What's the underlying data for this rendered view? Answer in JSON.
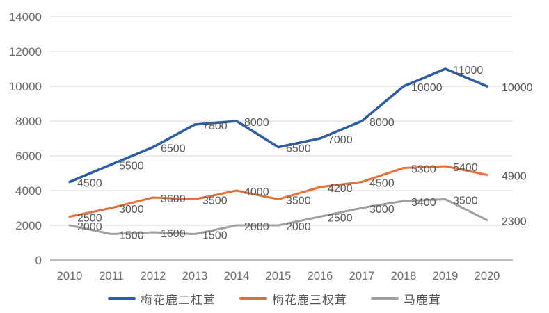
{
  "chart_data": {
    "type": "line",
    "title": "",
    "xlabel": "",
    "ylabel": "",
    "x": [
      "2010",
      "2011",
      "2012",
      "2013",
      "2014",
      "2015",
      "2016",
      "2017",
      "2018",
      "2019",
      "2020"
    ],
    "series": [
      {
        "name": "梅花鹿二杠茸",
        "color": "#2E5DA4",
        "values": [
          4500,
          5500,
          6500,
          7800,
          8000,
          6500,
          7000,
          8000,
          10000,
          11000,
          10000
        ]
      },
      {
        "name": "梅花鹿三权茸",
        "color": "#E5713A",
        "values": [
          2500,
          3000,
          3600,
          3500,
          4000,
          3500,
          4200,
          4500,
          5300,
          5400,
          4900
        ]
      },
      {
        "name": "马鹿茸",
        "color": "#9EA0A2",
        "values": [
          2000,
          1500,
          1600,
          1500,
          2000,
          2000,
          2500,
          3000,
          3400,
          3500,
          2300
        ]
      }
    ],
    "ylim": [
      0,
      14000
    ],
    "y_ticks": [
      0,
      2000,
      4000,
      6000,
      8000,
      10000,
      12000,
      14000
    ],
    "grid": true,
    "data_labels": true,
    "legend_position": "bottom",
    "colors": {
      "data_label": "#595959",
      "axis_text": "#6C6C6C",
      "gridline": "#D8D8D8",
      "axis_line": "#A9A9A9"
    }
  }
}
